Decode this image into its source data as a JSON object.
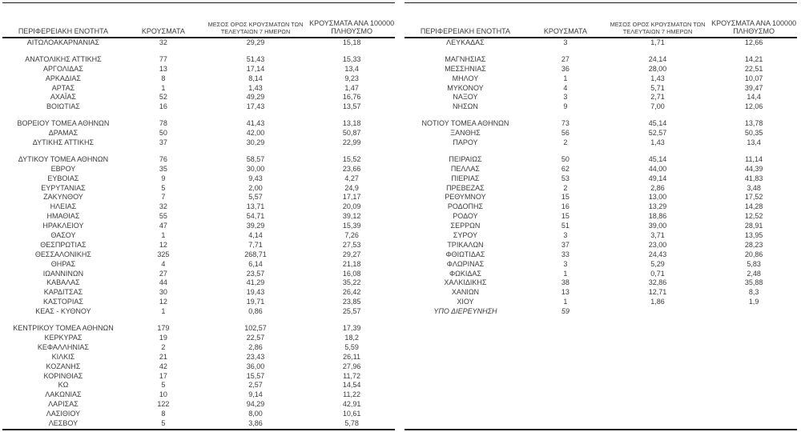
{
  "headers": {
    "region": "ΠΕΡΙΦΕΡΕΙΑΚΗ ΕΝΟΤΗΤΑ",
    "cases": "ΚΡΟΥΣΜΑΤΑ",
    "avg7_line1": "ΜΕΣΟΣ ΟΡΟΣ ΚΡΟΥΣΜΑΤΩΝ ΤΩΝ",
    "avg7_line2": "ΤΕΛΕΥΤΑΙΩΝ 7 ΗΜΕΡΩΝ",
    "per100k_line1": "ΚΡΟΥΣΜΑΤΑ ΑΝΑ 100000",
    "per100k_line2": "ΠΛΗΘΥΣΜΟ"
  },
  "colors": {
    "text": "#3b3b3b",
    "line": "#1c1c1c",
    "background": "#ffffff"
  },
  "tables": [
    {
      "name": "regional-units-left",
      "blocks": [
        [
          [
            "ΑΙΤΩΛΟΑΚΑΡΝΑΝΙΑΣ",
            "32",
            "29,29",
            "15,18"
          ]
        ],
        [
          [
            "ΑΝΑΤΟΛΙΚΗΣ ΑΤΤΙΚΗΣ",
            "77",
            "51,43",
            "15,33"
          ],
          [
            "ΑΡΓΟΛΙΔΑΣ",
            "13",
            "17,14",
            "13,4"
          ],
          [
            "ΑΡΚΑΔΙΑΣ",
            "8",
            "8,14",
            "9,23"
          ],
          [
            "ΑΡΤΑΣ",
            "1",
            "1,43",
            "1,47"
          ],
          [
            "ΑΧΑΪΑΣ",
            "52",
            "49,29",
            "16,76"
          ],
          [
            "ΒΟΙΩΤΙΑΣ",
            "16",
            "17,43",
            "13,57"
          ]
        ],
        [
          [
            "ΒΟΡΕΙΟΥ ΤΟΜΕΑ ΑΘΗΝΩΝ",
            "78",
            "41,43",
            "13,18"
          ],
          [
            "ΔΡΑΜΑΣ",
            "50",
            "42,00",
            "50,87"
          ],
          [
            "ΔΥΤΙΚΗΣ ΑΤΤΙΚΗΣ",
            "37",
            "30,29",
            "22,99"
          ]
        ],
        [
          [
            "ΔΥΤΙΚΟΥ ΤΟΜΕΑ ΑΘΗΝΩΝ",
            "76",
            "58,57",
            "15,52"
          ],
          [
            "ΕΒΡΟΥ",
            "35",
            "30,00",
            "23,66"
          ],
          [
            "ΕΥΒΟΙΑΣ",
            "9",
            "9,43",
            "4,27"
          ],
          [
            "ΕΥΡΥΤΑΝΙΑΣ",
            "5",
            "2,00",
            "24,9"
          ],
          [
            "ΖΑΚΥΝΘΟΥ",
            "7",
            "5,57",
            "17,17"
          ],
          [
            "ΗΛΕΙΑΣ",
            "32",
            "13,71",
            "20,09"
          ],
          [
            "ΗΜΑΘΙΑΣ",
            "55",
            "54,71",
            "39,12"
          ],
          [
            "ΗΡΑΚΛΕΙΟΥ",
            "47",
            "39,29",
            "15,39"
          ],
          [
            "ΘΑΣΟΥ",
            "1",
            "4,14",
            "7,26"
          ],
          [
            "ΘΕΣΠΡΩΤΙΑΣ",
            "12",
            "7,71",
            "27,53"
          ],
          [
            "ΘΕΣΣΑΛΟΝΙΚΗΣ",
            "325",
            "268,71",
            "29,27"
          ],
          [
            "ΘΗΡΑΣ",
            "4",
            "6,14",
            "21,18"
          ],
          [
            "ΙΩΑΝΝΙΝΩΝ",
            "27",
            "23,57",
            "16,08"
          ],
          [
            "ΚΑΒΑΛΑΣ",
            "44",
            "41,29",
            "35,22"
          ],
          [
            "ΚΑΡΔΙΤΣΑΣ",
            "30",
            "19,43",
            "26,42"
          ],
          [
            "ΚΑΣΤΟΡΙΑΣ",
            "12",
            "19,71",
            "23,85"
          ],
          [
            "ΚΕΑΣ - ΚΥΘΝΟΥ",
            "1",
            "0,86",
            "25,57"
          ]
        ],
        [
          [
            "ΚΕΝΤΡΙΚΟΥ ΤΟΜΕΑ ΑΘΗΝΩΝ",
            "179",
            "102,57",
            "17,39"
          ],
          [
            "ΚΕΡΚΥΡΑΣ",
            "19",
            "22,57",
            "18,2"
          ],
          [
            "ΚΕΦΑΛΛΗΝΙΑΣ",
            "2",
            "2,86",
            "5,59"
          ],
          [
            "ΚΙΛΚΙΣ",
            "21",
            "23,43",
            "26,11"
          ],
          [
            "ΚΟΖΑΝΗΣ",
            "42",
            "36,00",
            "27,96"
          ],
          [
            "ΚΟΡΙΝΘΙΑΣ",
            "17",
            "15,57",
            "11,72"
          ],
          [
            "ΚΩ",
            "5",
            "2,57",
            "14,54"
          ],
          [
            "ΛΑΚΩΝΙΑΣ",
            "10",
            "9,14",
            "11,22"
          ],
          [
            "ΛΑΡΙΣΑΣ",
            "122",
            "94,29",
            "42,91"
          ],
          [
            "ΛΑΣΙΘΙΟΥ",
            "8",
            "8,00",
            "10,61"
          ],
          [
            "ΛΕΣΒΟΥ",
            "5",
            "3,86",
            "5,78"
          ]
        ]
      ]
    },
    {
      "name": "regional-units-right",
      "blocks": [
        [
          [
            "ΛΕΥΚΑΔΑΣ",
            "3",
            "1,71",
            "12,66"
          ]
        ],
        [
          [
            "ΜΑΓΝΗΣΙΑΣ",
            "27",
            "24,14",
            "14,21"
          ],
          [
            "ΜΕΣΣΗΝΙΑΣ",
            "36",
            "28,00",
            "22,51"
          ],
          [
            "ΜΗΛΟΥ",
            "1",
            "1,43",
            "10,07"
          ],
          [
            "ΜΥΚΟΝΟΥ",
            "4",
            "5,71",
            "39,47"
          ],
          [
            "ΝΑΞΟΥ",
            "3",
            "2,71",
            "14,4"
          ],
          [
            "ΝΗΣΩΝ",
            "9",
            "7,00",
            "12,06"
          ]
        ],
        [
          [
            "ΝΟΤΙΟΥ ΤΟΜΕΑ ΑΘΗΝΩΝ",
            "73",
            "45,14",
            "13,78"
          ],
          [
            "ΞΑΝΘΗΣ",
            "56",
            "52,57",
            "50,35"
          ],
          [
            "ΠΑΡΟΥ",
            "2",
            "1,43",
            "13,4"
          ]
        ],
        [
          [
            "ΠΕΙΡΑΙΩΣ",
            "50",
            "45,14",
            "11,14"
          ],
          [
            "ΠΕΛΛΑΣ",
            "62",
            "44,00",
            "44,39"
          ],
          [
            "ΠΙΕΡΙΑΣ",
            "53",
            "49,14",
            "41,83"
          ],
          [
            "ΠΡΕΒΕΖΑΣ",
            "2",
            "2,86",
            "3,48"
          ],
          [
            "ΡΕΘΥΜΝΟΥ",
            "15",
            "13,00",
            "17,52"
          ],
          [
            "ΡΟΔΟΠΗΣ",
            "16",
            "13,29",
            "14,28"
          ],
          [
            "ΡΟΔΟΥ",
            "15",
            "18,86",
            "12,52"
          ],
          [
            "ΣΕΡΡΩΝ",
            "51",
            "39,00",
            "28,91"
          ],
          [
            "ΣΥΡΟΥ",
            "3",
            "3,71",
            "13,95"
          ],
          [
            "ΤΡΙΚΑΛΩΝ",
            "37",
            "23,00",
            "28,23"
          ],
          [
            "ΦΘΙΩΤΙΔΑΣ",
            "33",
            "24,43",
            "20,86"
          ],
          [
            "ΦΛΩΡΙΝΑΣ",
            "3",
            "5,29",
            "5,83"
          ],
          [
            "ΦΩΚΙΔΑΣ",
            "1",
            "0,71",
            "2,48"
          ],
          [
            "ΧΑΛΚΙΔΙΚΗΣ",
            "38",
            "32,86",
            "35,88"
          ],
          [
            "ΧΑΝΙΩΝ",
            "13",
            "12,71",
            "8,3"
          ],
          [
            "ΧΙΟΥ",
            "1",
            "1,86",
            "1,9"
          ],
          {
            "c": [
              "ΥΠΟ ΔΙΕΡΕΥΝΗΣΗ",
              "59",
              "",
              ""
            ],
            "italic": true
          }
        ]
      ]
    }
  ]
}
